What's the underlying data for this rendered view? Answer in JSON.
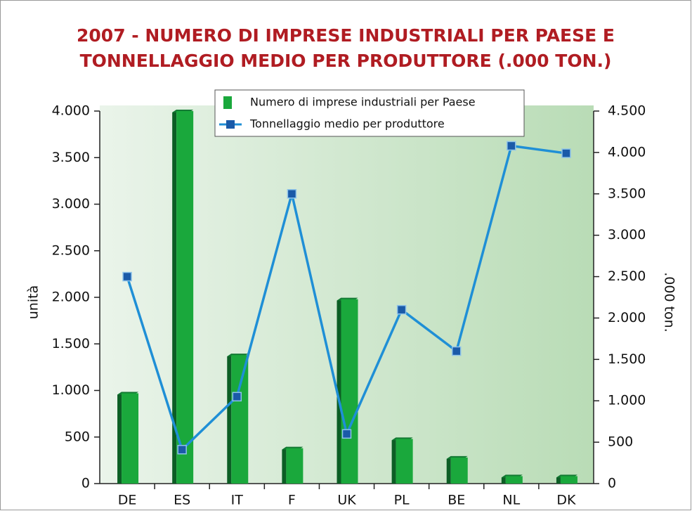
{
  "chart_data": {
    "type": "bar-line",
    "title": [
      "2007 - NUMERO DI IMPRESE INDUSTRIALI PER PAESE E",
      "TONNELLAGGIO MEDIO PER PRODUTTORE (.000 TON.)"
    ],
    "ylabel": "unità",
    "y2label": ".000 ton.",
    "categories": [
      "DE",
      "ES",
      "IT",
      "F",
      "UK",
      "PL",
      "BE",
      "NL",
      "DK"
    ],
    "series": [
      {
        "name": "Numero di imprese industriali per Paese",
        "type": "bar",
        "color": "#1aa83c",
        "values": [
          970,
          4000,
          1380,
          380,
          1980,
          480,
          280,
          80,
          80
        ]
      },
      {
        "name": "Tonnellaggio medio per produttore",
        "type": "line",
        "axis": "y2",
        "color": "#1f8fd6",
        "marker_color": "#1a5aa8",
        "values": [
          2500,
          410,
          1050,
          3500,
          600,
          2100,
          1600,
          4080,
          3990
        ]
      }
    ],
    "ylim": [
      0,
      4000
    ],
    "yticks": [
      0,
      500,
      {
        "value": 1000,
        "label": "1.000"
      },
      {
        "value": 1500,
        "label": "1.500"
      },
      {
        "value": 2000,
        "label": "2.000"
      },
      {
        "value": 2500,
        "label": "2.500"
      },
      {
        "value": 3000,
        "label": "3.000"
      },
      {
        "value": 3500,
        "label": "3.500"
      },
      {
        "value": 4000,
        "label": "4.000"
      }
    ],
    "y2lim": [
      0,
      4500
    ],
    "y2ticks": [
      0,
      500,
      {
        "value": 1000,
        "label": "1.000"
      },
      {
        "value": 1500,
        "label": "1.500"
      },
      {
        "value": 2000,
        "label": "2.000"
      },
      {
        "value": 2500,
        "label": "2.500"
      },
      {
        "value": 3000,
        "label": "3.000"
      },
      {
        "value": 3500,
        "label": "3.500"
      },
      {
        "value": 4000,
        "label": "4.000"
      },
      {
        "value": 4500,
        "label": "4.500"
      }
    ],
    "legend": "top"
  }
}
